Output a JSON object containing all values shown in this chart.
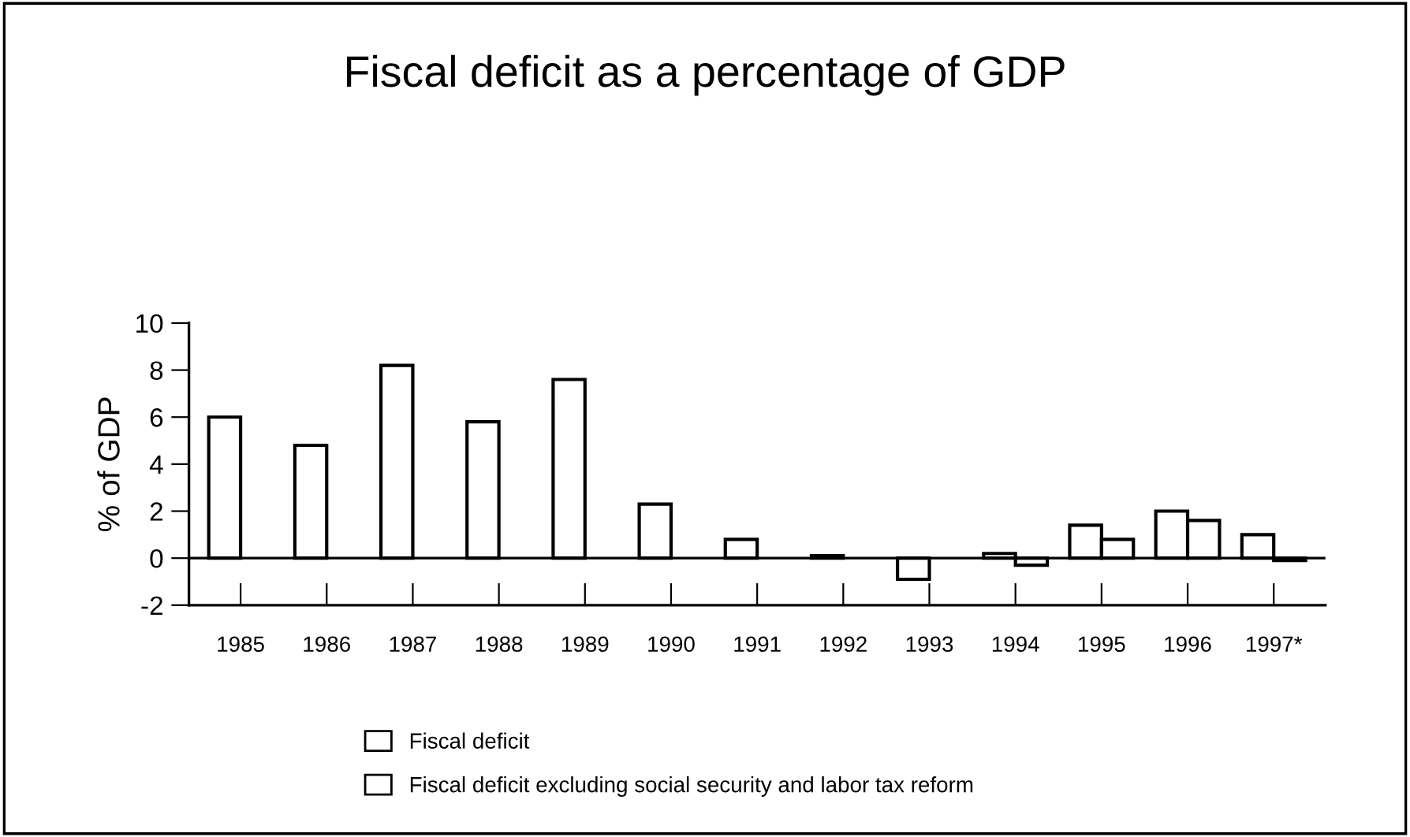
{
  "chart_data": {
    "type": "bar",
    "title": "Fiscal deficit as a percentage of GDP",
    "ylabel": "% of GDP",
    "categories": [
      "1985",
      "1986",
      "1987",
      "1988",
      "1989",
      "1990",
      "1991",
      "1992",
      "1993",
      "1994",
      "1995",
      "1996",
      "1997*"
    ],
    "series": [
      {
        "name": "Fiscal deficit",
        "color": "#ffffff",
        "values": [
          6.0,
          4.8,
          8.2,
          5.8,
          7.6,
          2.3,
          0.8,
          0.1,
          -0.9,
          0.2,
          1.4,
          2.0,
          1.0
        ]
      },
      {
        "name": "Fiscal deficit excluding social security and labor tax reform",
        "color": "#ffffff",
        "values": [
          null,
          null,
          null,
          null,
          null,
          null,
          null,
          null,
          null,
          -0.3,
          0.8,
          1.6,
          -0.1
        ]
      }
    ],
    "ylim": [
      -2,
      10
    ],
    "yticks": [
      -2,
      0,
      2,
      4,
      6,
      8,
      10
    ],
    "ref_lines": [
      {
        "axis": "y",
        "value": 0,
        "color": "#000000"
      }
    ],
    "grid": false,
    "legend": "bottom"
  }
}
